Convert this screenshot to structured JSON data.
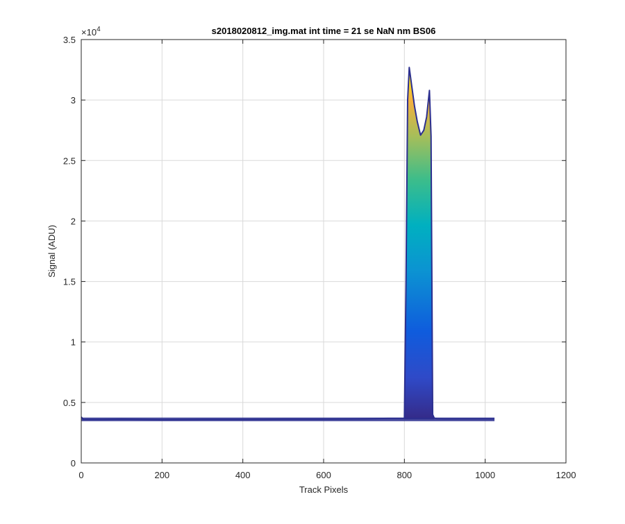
{
  "chart_data": {
    "type": "area",
    "title": "s2018020812_img.mat int time = 21 se  NaN nm BS06",
    "xlabel": "Track Pixels",
    "ylabel": "Signal (ADU)",
    "y_exponent_label": "×10",
    "y_exponent_power": "4",
    "xlim": [
      0,
      1200
    ],
    "ylim": [
      0,
      35000
    ],
    "grid": true,
    "colormap": "parula",
    "colors": {
      "baseline": "#2c2f8f",
      "parula_low": "#352a87",
      "parula_mid_blue": "#0f5cdd",
      "parula_cyan": "#00a8c6",
      "parula_green": "#64c06b",
      "parula_orange": "#f2b03f",
      "parula_high": "#f9fb0e",
      "grid": "#d9d9d9",
      "axis": "#262626"
    },
    "x_ticks": [
      0,
      200,
      400,
      600,
      800,
      1000,
      1200
    ],
    "x_tick_labels": [
      "0",
      "200",
      "400",
      "600",
      "800",
      "1000",
      "1200"
    ],
    "y_ticks": [
      0,
      5000,
      10000,
      15000,
      20000,
      25000,
      30000,
      35000
    ],
    "y_tick_labels": [
      "0",
      "0.5",
      "1",
      "1.5",
      "2",
      "2.5",
      "3",
      "3.5"
    ],
    "series": [
      {
        "x": [
          0,
          5,
          50,
          100,
          200,
          300,
          400,
          500,
          600,
          700,
          760,
          800,
          804,
          808,
          812,
          818,
          825,
          832,
          840,
          848,
          855,
          862,
          866,
          870,
          874,
          880,
          900,
          1000,
          1023
        ],
        "values": [
          3800,
          3600,
          3600,
          3620,
          3580,
          3600,
          3600,
          3620,
          3620,
          3640,
          3680,
          3680,
          15000,
          30000,
          32700,
          31200,
          29500,
          28200,
          27100,
          27500,
          28600,
          30800,
          27000,
          4000,
          3700,
          3660,
          3640,
          3650,
          3640
        ]
      }
    ]
  }
}
